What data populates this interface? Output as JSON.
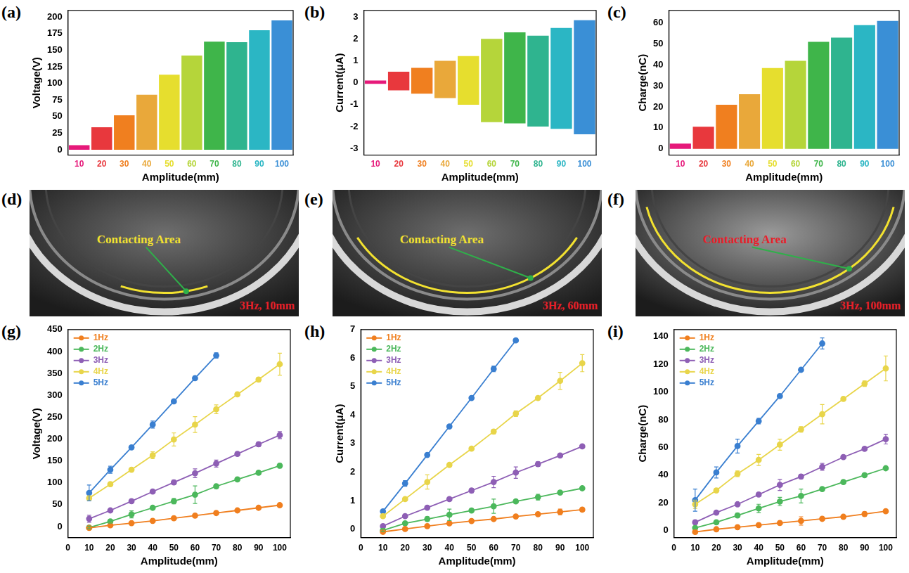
{
  "chart_data": [
    {
      "panel": "(a)",
      "type": "bar",
      "x_label": "Amplitude(mm)",
      "y_label": "Voltage(V)",
      "categories": [
        "10",
        "20",
        "30",
        "40",
        "50",
        "60",
        "70",
        "80",
        "90",
        "100"
      ],
      "values": [
        [
          0,
          7
        ],
        [
          0,
          34
        ],
        [
          0,
          52
        ],
        [
          0,
          83
        ],
        [
          0,
          113
        ],
        [
          0,
          142
        ],
        [
          0,
          163
        ],
        [
          0,
          162
        ],
        [
          0,
          180
        ],
        [
          0,
          195
        ]
      ],
      "colors": [
        "#e6197a",
        "#e8383d",
        "#f07f1f",
        "#e9a83a",
        "#e6de2e",
        "#b5d53a",
        "#3fb54a",
        "#2fb48f",
        "#2bb6c4",
        "#3a8fd6"
      ],
      "ylim": [
        -8,
        210
      ],
      "yticks": [
        0,
        25,
        50,
        75,
        100,
        125,
        150,
        175,
        200
      ],
      "grid": false
    },
    {
      "panel": "(b)",
      "type": "bar",
      "x_label": "Amplitude(mm)",
      "y_label": "Current(μA)",
      "categories": [
        "10",
        "20",
        "30",
        "40",
        "50",
        "60",
        "70",
        "80",
        "90",
        "100"
      ],
      "values": [
        [
          -0.05,
          0.1
        ],
        [
          -0.35,
          0.5
        ],
        [
          -0.5,
          0.68
        ],
        [
          -0.7,
          1.0
        ],
        [
          -1.0,
          1.22
        ],
        [
          -1.8,
          2.0
        ],
        [
          -1.85,
          2.3
        ],
        [
          -2.0,
          2.15
        ],
        [
          -2.1,
          2.5
        ],
        [
          -2.35,
          2.85
        ]
      ],
      "colors": [
        "#e6197a",
        "#e8383d",
        "#f07f1f",
        "#e9a83a",
        "#e6de2e",
        "#b5d53a",
        "#3fb54a",
        "#2fb48f",
        "#2bb6c4",
        "#3a8fd6"
      ],
      "ylim": [
        -3.3,
        3.3
      ],
      "yticks": [
        -3,
        -2,
        -1,
        0,
        1,
        2,
        3
      ],
      "grid": false
    },
    {
      "panel": "(c)",
      "type": "bar",
      "x_label": "Amplitude(mm)",
      "y_label": "Charge(nC)",
      "categories": [
        "10",
        "20",
        "30",
        "40",
        "50",
        "60",
        "70",
        "80",
        "90",
        "100"
      ],
      "values": [
        [
          0,
          2.5
        ],
        [
          0,
          10.5
        ],
        [
          0,
          21
        ],
        [
          0,
          26
        ],
        [
          0,
          38.5
        ],
        [
          0,
          42
        ],
        [
          0,
          51
        ],
        [
          0,
          53
        ],
        [
          0,
          59
        ],
        [
          0,
          61
        ]
      ],
      "colors": [
        "#e6197a",
        "#e8383d",
        "#f07f1f",
        "#e9a83a",
        "#e6de2e",
        "#b5d53a",
        "#3fb54a",
        "#2fb48f",
        "#2bb6c4",
        "#3a8fd6"
      ],
      "ylim": [
        -3,
        66
      ],
      "yticks": [
        0,
        10,
        20,
        30,
        40,
        50,
        60
      ],
      "grid": false
    },
    {
      "panel": "(g)",
      "type": "line",
      "x_label": "Amplitude(mm)",
      "y_label": "Voltage(V)",
      "x": [
        10,
        20,
        30,
        40,
        50,
        60,
        70,
        80,
        90,
        100
      ],
      "series": [
        {
          "name": "1Hz",
          "color": "#f07f1f",
          "values": [
            -3,
            3,
            8,
            13,
            19,
            25,
            31,
            37,
            43,
            49
          ],
          "errors": [
            2,
            2,
            2,
            2,
            2,
            2,
            2,
            2,
            2,
            2
          ]
        },
        {
          "name": "2Hz",
          "color": "#4cb85c",
          "values": [
            -2,
            12,
            28,
            43,
            58,
            73,
            92,
            108,
            123,
            139
          ],
          "errors": [
            3,
            4,
            8,
            4,
            6,
            20,
            5,
            4,
            4,
            5
          ]
        },
        {
          "name": "3Hz",
          "color": "#8e5fb5",
          "values": [
            18,
            37,
            58,
            80,
            101,
            122,
            144,
            166,
            188,
            209
          ],
          "errors": [
            8,
            3,
            4,
            4,
            5,
            10,
            8,
            4,
            5,
            8
          ]
        },
        {
          "name": "4Hz",
          "color": "#e8d54a",
          "values": [
            65,
            97,
            130,
            163,
            199,
            233,
            268,
            302,
            336,
            371
          ],
          "errors": [
            5,
            5,
            4,
            8,
            15,
            18,
            10,
            4,
            5,
            25
          ]
        },
        {
          "name": "5Hz",
          "color": "#3a7fd0",
          "values": [
            77,
            130,
            181,
            233,
            286,
            339,
            391,
            null,
            null,
            null
          ],
          "errors": [
            18,
            8,
            4,
            8,
            4,
            4,
            6,
            null,
            null,
            null
          ]
        }
      ],
      "xlim": [
        0,
        105
      ],
      "xticks": [
        0,
        10,
        20,
        30,
        40,
        50,
        60,
        70,
        80,
        90,
        100
      ],
      "ylim": [
        -25,
        450
      ],
      "yticks": [
        0,
        50,
        100,
        150,
        200,
        250,
        300,
        350,
        400,
        450
      ],
      "grid": false,
      "legend": "upper left",
      "marker": "circle"
    },
    {
      "panel": "(h)",
      "type": "line",
      "x_label": "Amplitude(mm)",
      "y_label": "Current(μA)",
      "x": [
        10,
        20,
        30,
        40,
        50,
        60,
        70,
        80,
        90,
        100
      ],
      "series": [
        {
          "name": "1Hz",
          "color": "#f07f1f",
          "values": [
            -0.1,
            0.0,
            0.1,
            0.2,
            0.28,
            0.35,
            0.44,
            0.52,
            0.6,
            0.68
          ],
          "errors": [
            0.03,
            0.03,
            0.03,
            0.03,
            0.03,
            0.05,
            0.04,
            0.04,
            0.1,
            0.06
          ]
        },
        {
          "name": "2Hz",
          "color": "#4cb85c",
          "values": [
            -0.05,
            0.2,
            0.35,
            0.5,
            0.65,
            0.8,
            0.97,
            1.12,
            1.28,
            1.43
          ],
          "errors": [
            0.04,
            0.05,
            0.08,
            0.2,
            0.05,
            0.25,
            0.05,
            0.1,
            0.05,
            0.05
          ]
        },
        {
          "name": "3Hz",
          "color": "#8e5fb5",
          "values": [
            0.1,
            0.45,
            0.75,
            1.05,
            1.35,
            1.65,
            1.98,
            2.28,
            2.58,
            2.9
          ],
          "errors": [
            0.05,
            0.05,
            0.05,
            0.05,
            0.08,
            0.2,
            0.2,
            0.08,
            0.05,
            0.05
          ]
        },
        {
          "name": "4Hz",
          "color": "#e8d54a",
          "values": [
            0.45,
            1.05,
            1.65,
            2.25,
            2.82,
            3.42,
            4.05,
            4.6,
            5.2,
            5.82
          ],
          "errors": [
            0.05,
            0.05,
            0.25,
            0.05,
            0.05,
            0.08,
            0.1,
            0.05,
            0.3,
            0.3
          ]
        },
        {
          "name": "5Hz",
          "color": "#3a7fd0",
          "values": [
            0.62,
            1.6,
            2.6,
            3.6,
            4.6,
            5.62,
            6.62,
            null,
            null,
            null
          ],
          "errors": [
            0.05,
            0.1,
            0.05,
            0.05,
            0.05,
            0.1,
            0.05,
            null,
            null,
            null
          ]
        }
      ],
      "xlim": [
        0,
        105
      ],
      "xticks": [
        0,
        10,
        20,
        30,
        40,
        50,
        60,
        70,
        80,
        90,
        100
      ],
      "ylim": [
        -0.3,
        7
      ],
      "yticks": [
        0,
        1,
        2,
        3,
        4,
        5,
        6,
        7
      ],
      "grid": false,
      "legend": "upper left",
      "marker": "circle"
    },
    {
      "panel": "(i)",
      "type": "line",
      "x_label": "Amplitude(mm)",
      "y_label": "Charge(nC)",
      "x": [
        10,
        20,
        30,
        40,
        50,
        60,
        70,
        80,
        90,
        100
      ],
      "series": [
        {
          "name": "1Hz",
          "color": "#f07f1f",
          "values": [
            -1,
            1,
            2.5,
            4,
            5.5,
            7,
            8.5,
            10,
            12,
            14
          ],
          "errors": [
            0.8,
            0.8,
            0.8,
            1,
            1,
            3,
            1,
            1,
            1.5,
            1
          ]
        },
        {
          "name": "2Hz",
          "color": "#4cb85c",
          "values": [
            2,
            6,
            11,
            16,
            21,
            25,
            30,
            35,
            40,
            45
          ],
          "errors": [
            1,
            1,
            1.5,
            3,
            3,
            5,
            1,
            1,
            1,
            1
          ]
        },
        {
          "name": "3Hz",
          "color": "#8e5fb5",
          "values": [
            6,
            13,
            19,
            26,
            33,
            39,
            46,
            53,
            59,
            66
          ],
          "errors": [
            1.5,
            1,
            1,
            1.5,
            4,
            1.5,
            2.5,
            1,
            1,
            3.5
          ]
        },
        {
          "name": "4Hz",
          "color": "#e8d54a",
          "values": [
            19,
            29,
            41,
            51,
            62,
            73,
            84,
            95,
            106,
            117
          ],
          "errors": [
            3,
            1.5,
            2,
            4,
            4,
            2,
            7,
            1,
            2,
            9
          ]
        },
        {
          "name": "5Hz",
          "color": "#3a7fd0",
          "values": [
            22,
            42,
            61,
            79,
            97,
            116,
            135,
            null,
            null,
            null
          ],
          "errors": [
            8,
            4,
            5,
            2,
            1,
            1,
            4,
            null,
            null,
            null
          ]
        }
      ],
      "xlim": [
        0,
        105
      ],
      "xticks": [
        0,
        10,
        20,
        30,
        40,
        50,
        60,
        70,
        80,
        90,
        100
      ],
      "ylim": [
        -5,
        145
      ],
      "yticks": [
        0,
        20,
        40,
        60,
        80,
        100,
        120,
        140
      ],
      "grid": false,
      "legend": "upper left",
      "marker": "circle"
    }
  ],
  "photos": [
    {
      "panel": "(d)",
      "annotation": "Contacting Area",
      "color": "#f2e130",
      "caption": "3Hz, 10mm"
    },
    {
      "panel": "(e)",
      "annotation": "Contacting Area",
      "color": "#f2e130",
      "caption": "3Hz, 60mm"
    },
    {
      "panel": "(f)",
      "annotation": "Contacting Area",
      "color": "#e8202a",
      "caption": "3Hz, 100mm"
    }
  ]
}
